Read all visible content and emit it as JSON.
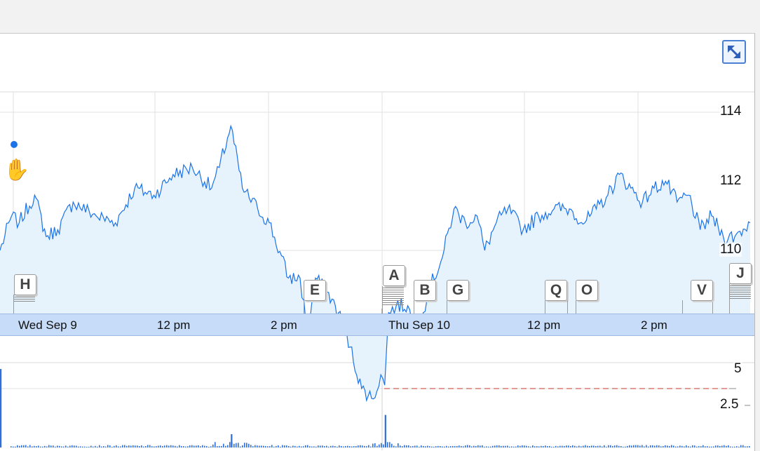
{
  "controls": {
    "expand_icon": "expand-arrows-icon"
  },
  "colors": {
    "line": "#1a73e8",
    "area_fill": "#e6f2fc",
    "volume_bar": "#2f6fd6",
    "prev_close_line": "#c0392b",
    "date_band": "#c6dcf8"
  },
  "price_axis": {
    "labels": [
      "114",
      "112",
      "110"
    ]
  },
  "volume_axis": {
    "labels": [
      "5",
      "2.5"
    ]
  },
  "date_axis": {
    "labels": [
      "Wed Sep 9",
      "12 pm",
      "2 pm",
      "Thu Sep 10",
      "12 pm",
      "2 pm"
    ]
  },
  "news_flags": [
    "H",
    "E",
    "A",
    "B",
    "G",
    "Q",
    "O",
    "V",
    "J"
  ],
  "chart_data": {
    "type": "line",
    "title": "",
    "xlabel": "",
    "ylabel": "",
    "ylim": [
      109.5,
      114.2
    ],
    "grid": true,
    "previous_close": 110,
    "x_ticks": [
      "Wed Sep 9",
      "12 pm",
      "2 pm",
      "Thu Sep 10",
      "12 pm",
      "2 pm"
    ],
    "price_series": {
      "name": "",
      "anchors": [
        [
          0,
          112.0
        ],
        [
          3,
          112.5
        ],
        [
          5,
          112.4
        ],
        [
          9,
          112.8
        ],
        [
          12,
          112.2
        ],
        [
          15,
          112.3
        ],
        [
          19,
          112.7
        ],
        [
          25,
          112.5
        ],
        [
          30,
          112.4
        ],
        [
          35,
          112.9
        ],
        [
          40,
          112.8
        ],
        [
          45,
          113.1
        ],
        [
          50,
          113.2
        ],
        [
          55,
          112.9
        ],
        [
          57,
          113.2
        ],
        [
          60,
          113.8
        ],
        [
          63,
          112.9
        ],
        [
          67,
          112.6
        ],
        [
          70,
          112.4
        ],
        [
          75,
          111.6
        ],
        [
          78,
          111.6
        ],
        [
          80,
          110.8
        ],
        [
          82,
          111.6
        ],
        [
          85,
          111.4
        ],
        [
          88,
          111.1
        ],
        [
          91,
          110.6
        ],
        [
          94,
          110.0
        ],
        [
          97,
          109.85
        ],
        [
          99,
          110.2
        ],
        [
          100,
          110.05
        ],
        [
          101,
          111.1
        ],
        [
          103,
          111.2
        ],
        [
          106,
          111.2
        ],
        [
          108,
          110.8
        ],
        [
          110,
          111.1
        ],
        [
          112,
          111.5
        ],
        [
          115,
          111.9
        ],
        [
          118,
          112.6
        ],
        [
          121,
          112.4
        ],
        [
          124,
          112.5
        ],
        [
          126,
          112.0
        ],
        [
          129,
          112.4
        ],
        [
          132,
          112.6
        ],
        [
          136,
          112.3
        ],
        [
          140,
          112.5
        ],
        [
          144,
          112.6
        ],
        [
          148,
          112.6
        ],
        [
          152,
          112.4
        ],
        [
          155,
          112.6
        ],
        [
          158,
          112.8
        ],
        [
          161,
          113.1
        ],
        [
          164,
          112.9
        ],
        [
          167,
          112.7
        ],
        [
          170,
          112.9
        ],
        [
          173,
          113.0
        ],
        [
          176,
          112.7
        ],
        [
          179,
          112.8
        ],
        [
          182,
          112.3
        ],
        [
          185,
          112.5
        ],
        [
          188,
          112.2
        ],
        [
          191,
          112.2
        ],
        [
          195,
          112.4
        ]
      ]
    },
    "volume_series": {
      "name": "",
      "ylim": [
        0,
        5.4
      ],
      "spikes": [
        [
          0,
          5.3
        ],
        [
          100,
          2.2
        ],
        [
          60,
          0.9
        ]
      ]
    }
  }
}
